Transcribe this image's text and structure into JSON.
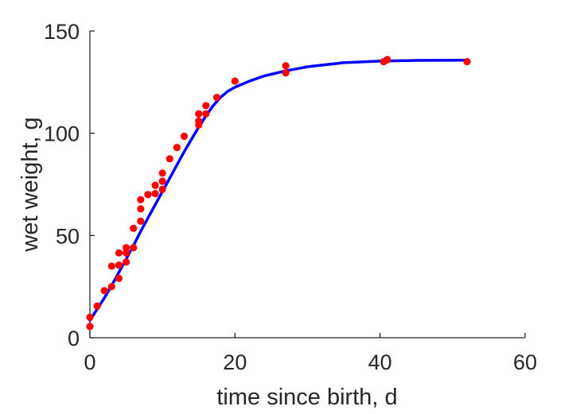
{
  "chart_data": {
    "type": "scatter",
    "title": "",
    "xlabel": "time since birth, d",
    "ylabel": "wet weight, g",
    "xlim": [
      0,
      60
    ],
    "ylim": [
      0,
      150
    ],
    "xticks": [
      "0",
      "20",
      "40",
      "60"
    ],
    "yticks": [
      "0",
      "50",
      "100",
      "150"
    ],
    "grid": false,
    "legend": "none",
    "series": [
      {
        "kind": "points",
        "color": "#ff0000",
        "points": [
          [
            0,
            10
          ],
          [
            0,
            5.5
          ],
          [
            1,
            15.5
          ],
          [
            2,
            23
          ],
          [
            3,
            25
          ],
          [
            3,
            35
          ],
          [
            4,
            29
          ],
          [
            4,
            35.5
          ],
          [
            4,
            41.5
          ],
          [
            5,
            37
          ],
          [
            5,
            41.5
          ],
          [
            5,
            44
          ],
          [
            6,
            44
          ],
          [
            6,
            53.5
          ],
          [
            7,
            57
          ],
          [
            7,
            63
          ],
          [
            7,
            67.5
          ],
          [
            8,
            70
          ],
          [
            9,
            70.5
          ],
          [
            9,
            74.5
          ],
          [
            10,
            72.5
          ],
          [
            10,
            76.5
          ],
          [
            10,
            80.5
          ],
          [
            11,
            87.5
          ],
          [
            12,
            93
          ],
          [
            13,
            98.5
          ],
          [
            15,
            104
          ],
          [
            15,
            106
          ],
          [
            15,
            109.5
          ],
          [
            16,
            109.5
          ],
          [
            16,
            113.5
          ],
          [
            17.5,
            117.5
          ],
          [
            20,
            125.5
          ],
          [
            27,
            133
          ],
          [
            27,
            129.5
          ],
          [
            40.5,
            135
          ],
          [
            41,
            136
          ],
          [
            52,
            135
          ]
        ]
      },
      {
        "kind": "line",
        "color": "#0000ff",
        "points": [
          [
            0,
            8.5
          ],
          [
            1,
            14
          ],
          [
            2,
            19.5
          ],
          [
            3,
            25.5
          ],
          [
            4,
            32
          ],
          [
            5,
            38.5
          ],
          [
            6,
            45
          ],
          [
            7,
            52
          ],
          [
            8,
            58.5
          ],
          [
            9,
            65
          ],
          [
            10,
            71.5
          ],
          [
            11,
            78
          ],
          [
            12,
            84.5
          ],
          [
            13,
            91
          ],
          [
            14,
            97
          ],
          [
            15,
            103
          ],
          [
            16,
            108.5
          ],
          [
            17,
            113.5
          ],
          [
            18,
            117.5
          ],
          [
            19,
            120.5
          ],
          [
            20,
            122.5
          ],
          [
            22,
            125.5
          ],
          [
            24,
            128
          ],
          [
            27,
            130.5
          ],
          [
            30,
            132.5
          ],
          [
            35,
            134.5
          ],
          [
            40,
            135.3
          ],
          [
            45,
            135.6
          ],
          [
            52,
            135.7
          ]
        ]
      }
    ]
  }
}
